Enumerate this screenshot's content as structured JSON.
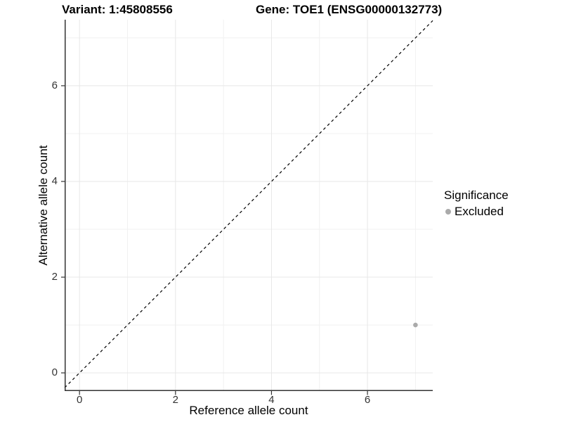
{
  "titles": {
    "variant": "Variant: 1:45808556",
    "gene": "Gene: TOE1 (ENSG00000132773)"
  },
  "legend": {
    "title": "Significance",
    "items": [
      {
        "label": "Excluded",
        "color": "#aaaaaa",
        "marker": "circle"
      }
    ]
  },
  "chart_data": {
    "type": "scatter",
    "title": "Variant: 1:45808556   Gene: TOE1 (ENSG00000132773)",
    "xlabel": "Reference allele count",
    "ylabel": "Alternative allele count",
    "xlim": [
      -0.31,
      7.36
    ],
    "ylim": [
      -0.38,
      7.38
    ],
    "xticks": [
      0,
      2,
      4,
      6
    ],
    "yticks": [
      0,
      2,
      4,
      6
    ],
    "minor_gridlines_x": [
      1,
      3,
      5,
      7
    ],
    "minor_gridlines_y": [
      1,
      3,
      5,
      7
    ],
    "grid": true,
    "legend_position": "right",
    "series": [
      {
        "name": "Excluded",
        "color": "#aaaaaa",
        "points": [
          {
            "x": 7,
            "y": 1
          }
        ]
      }
    ],
    "reference_line": {
      "type": "identity",
      "slope": 1,
      "intercept": 0,
      "style": "dashed",
      "color": "#000000"
    }
  },
  "colors": {
    "background": "#ffffff",
    "grid_major": "#e7e7e7",
    "grid_minor": "#f1f1f1",
    "axis_line": "#333333",
    "tick_mark": "#333333",
    "tick_label": "#333333",
    "text": "#000000",
    "point": "#aaaaaa"
  }
}
